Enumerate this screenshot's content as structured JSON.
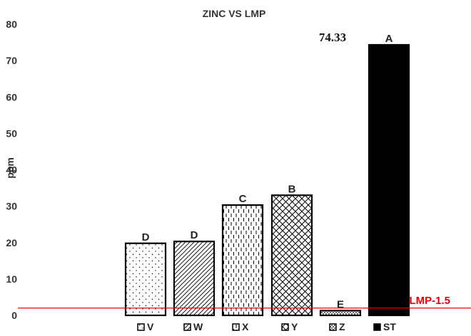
{
  "chart_data": {
    "type": "bar",
    "title": "ZINC VS LMP",
    "xlabel": "",
    "ylabel": "ppm",
    "ylim": [
      0,
      80
    ],
    "yticks": [
      "0",
      "10",
      "20",
      "30",
      "40",
      "50",
      "60",
      "70",
      "80"
    ],
    "grid": false,
    "legend_position": "bottom",
    "categories": [
      "V",
      "W",
      "X",
      "Y",
      "Z",
      "ST"
    ],
    "values": [
      19.8,
      20.3,
      30.3,
      33.0,
      1.3,
      74.33
    ],
    "group_letters": [
      "D",
      "D",
      "C",
      "B",
      "E",
      "A"
    ],
    "patterns": [
      "dots",
      "diagonal-lines",
      "vertical-dashes",
      "crosshatch",
      "dense-dots",
      "solid"
    ],
    "value_annotation": {
      "category": "ST",
      "text": "74.33"
    },
    "reference_line": {
      "value": 2.0,
      "label": "LMP-1.5",
      "color": "#e8000b"
    }
  }
}
